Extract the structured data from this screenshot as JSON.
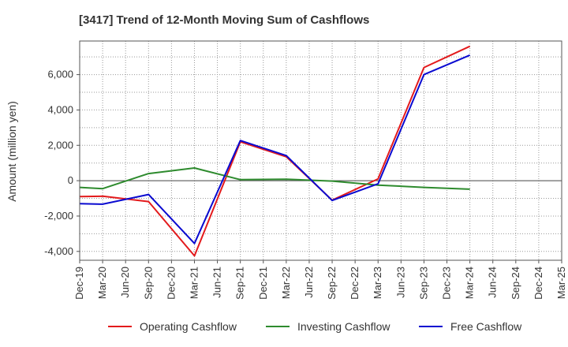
{
  "chart_data": {
    "type": "line",
    "title": "[3417]  Trend of 12-Month Moving Sum of Cashflows",
    "ylabel": "Amount (million yen)",
    "xlabel": "",
    "categories": [
      "Dec-19",
      "Mar-20",
      "Jun-20",
      "Sep-20",
      "Dec-20",
      "Mar-21",
      "Jun-21",
      "Sep-21",
      "Dec-21",
      "Mar-22",
      "Jun-22",
      "Sep-22",
      "Dec-22",
      "Mar-23",
      "Jun-23",
      "Sep-23",
      "Dec-23",
      "Mar-24",
      "Jun-24",
      "Sep-24",
      "Dec-24",
      "Mar-25"
    ],
    "ylim": [
      -4500,
      7900
    ],
    "yticks": [
      -4000,
      -2000,
      0,
      2000,
      4000,
      6000
    ],
    "ytick_labels": [
      "-4,000",
      "-2,000",
      "0",
      "2,000",
      "4,000",
      "6,000"
    ],
    "grid": true,
    "legend_position": "bottom",
    "series": [
      {
        "name": "Operating Cashflow",
        "color": "#e31a1c",
        "values": [
          -900,
          -880,
          null,
          -1180,
          null,
          -4250,
          null,
          2200,
          null,
          1350,
          null,
          -1100,
          null,
          100,
          null,
          6400,
          null,
          7600,
          null,
          null,
          null,
          null
        ]
      },
      {
        "name": "Investing Cashflow",
        "color": "#2e8b2e",
        "values": [
          -380,
          -450,
          null,
          400,
          null,
          720,
          null,
          60,
          null,
          80,
          null,
          -20,
          null,
          -250,
          null,
          -380,
          null,
          -480,
          null,
          null,
          null,
          null
        ]
      },
      {
        "name": "Free Cashflow",
        "color": "#0a0ad0",
        "values": [
          -1300,
          -1330,
          null,
          -780,
          null,
          -3550,
          null,
          2270,
          null,
          1420,
          null,
          -1120,
          null,
          -180,
          null,
          6000,
          null,
          7100,
          null,
          null,
          null,
          null
        ]
      }
    ]
  }
}
